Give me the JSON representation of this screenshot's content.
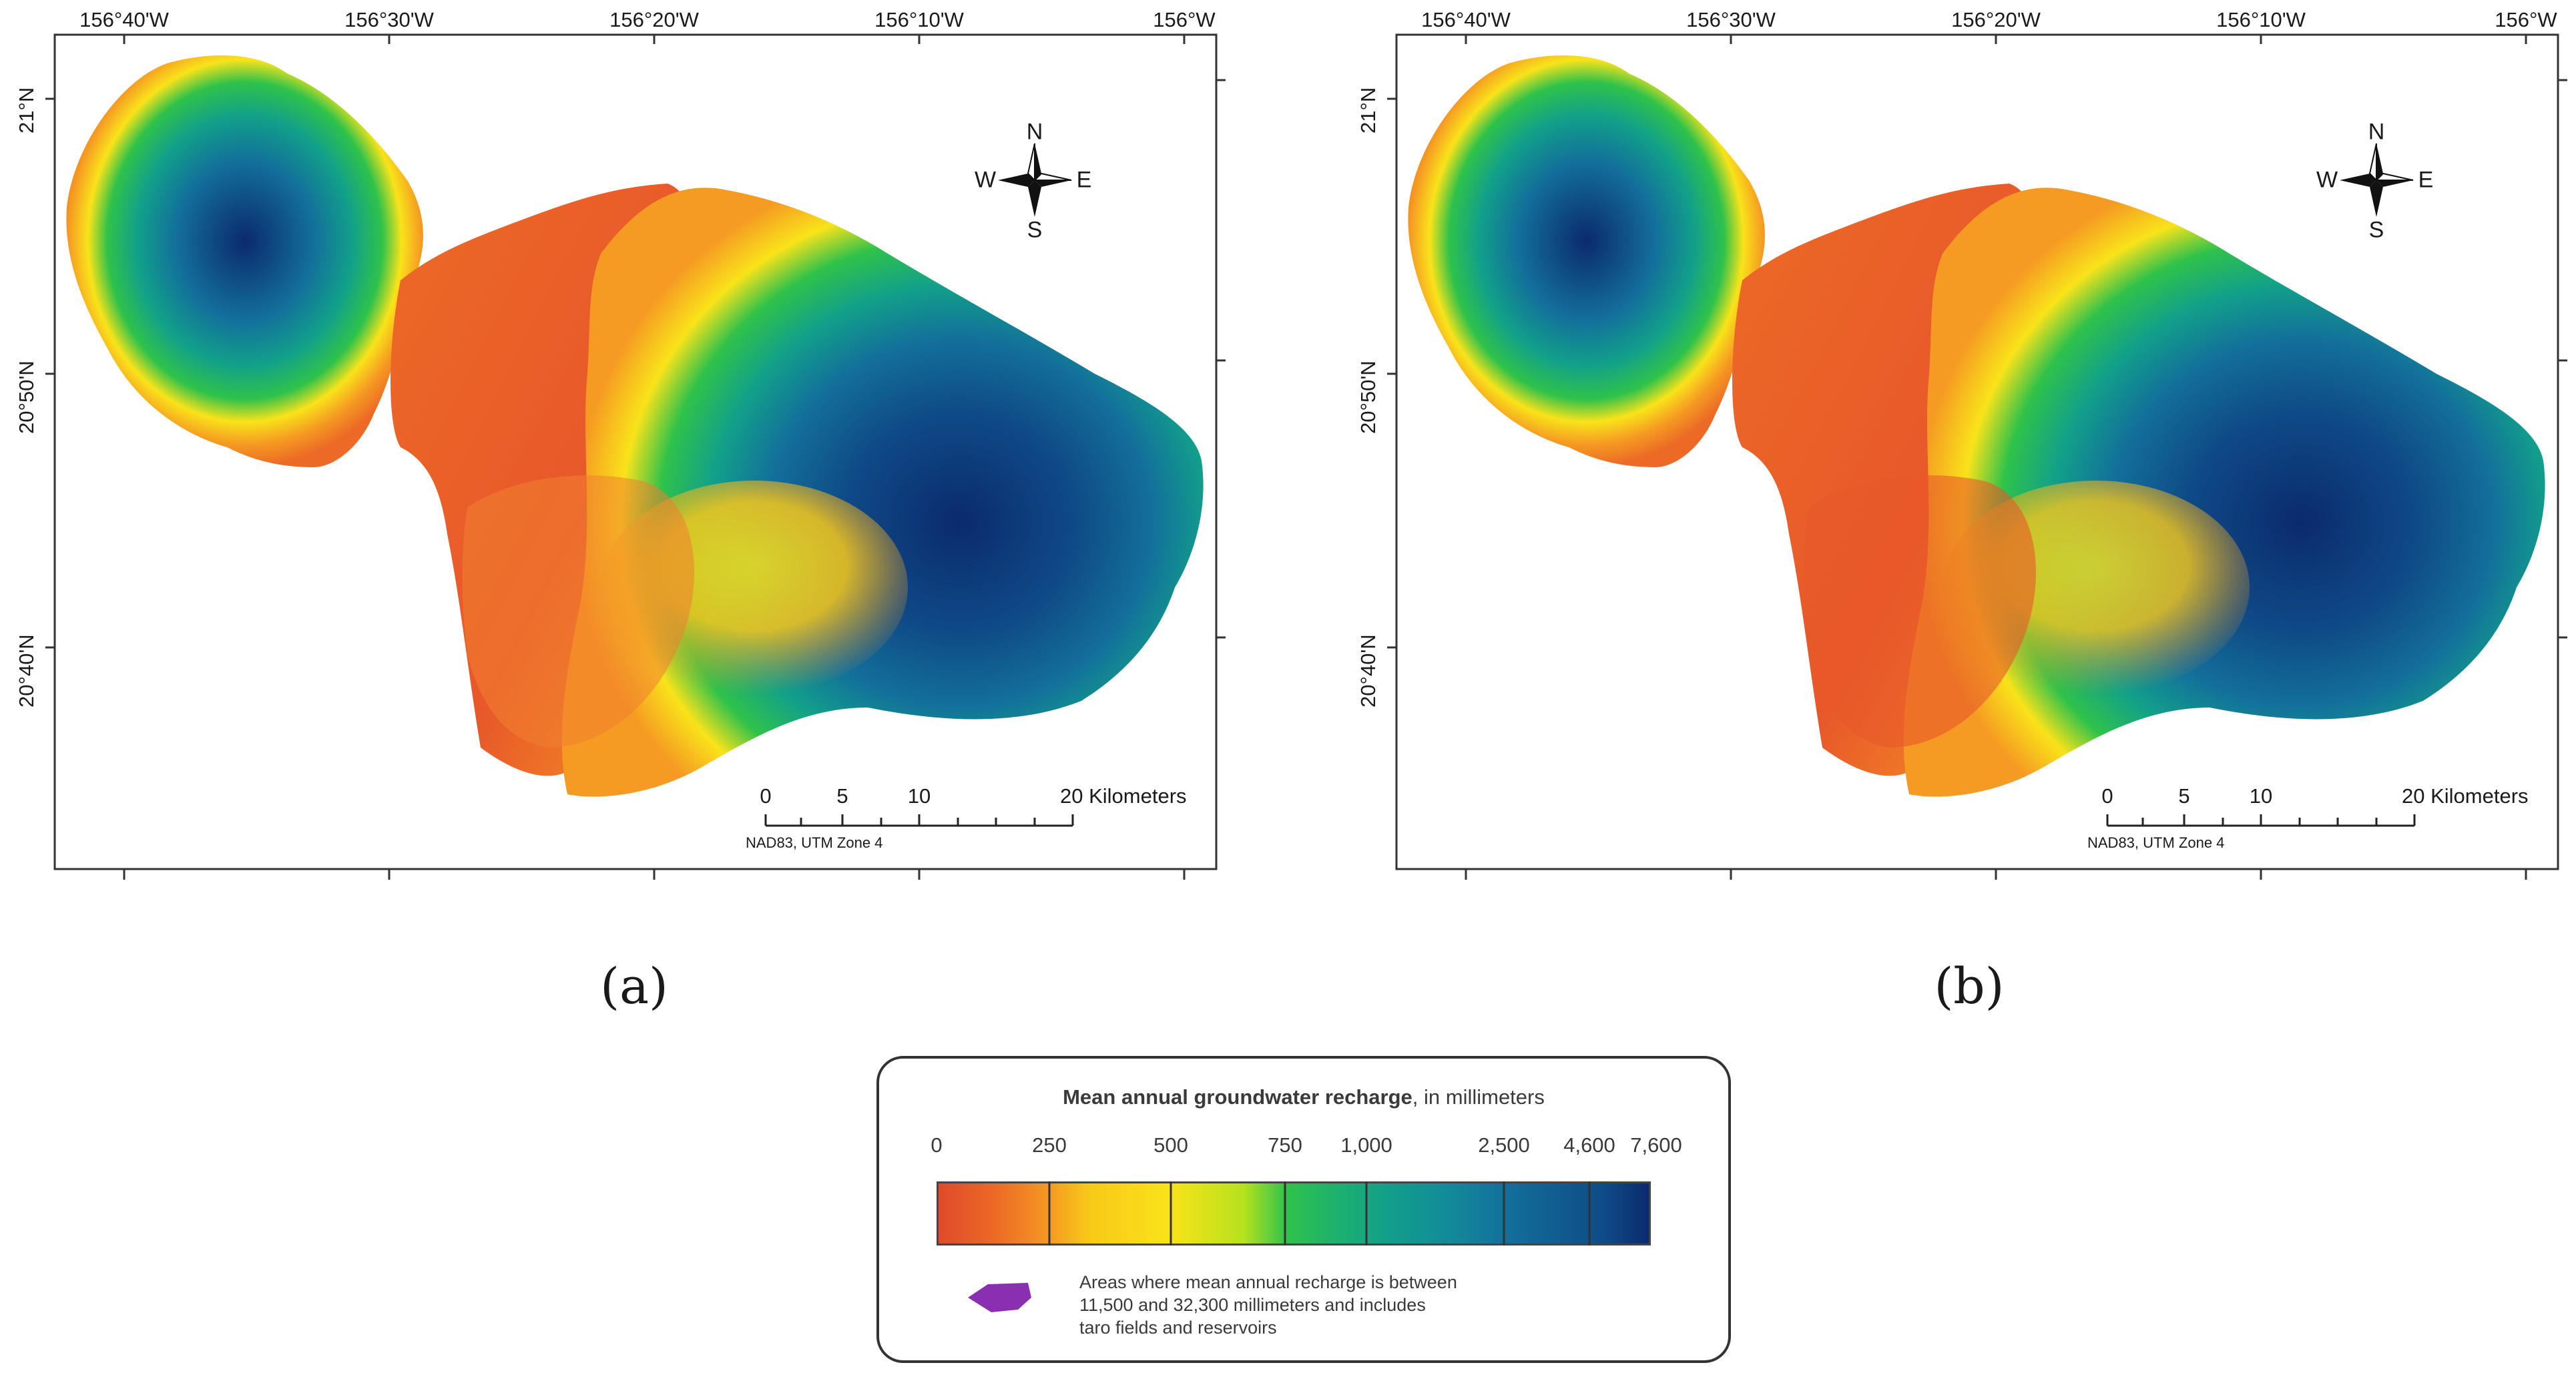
{
  "maps": [
    {
      "id": "a",
      "caption": "(a)",
      "lon_labels": [
        "156°40'W",
        "156°30'W",
        "156°20'W",
        "156°10'W",
        "156°W"
      ],
      "lat_labels": [
        "21°N",
        "20°50'N",
        "20°40'N"
      ],
      "compass": {
        "n": "N",
        "s": "S",
        "e": "E",
        "w": "W"
      },
      "scale_bar": {
        "ticks": [
          "0",
          "5",
          "10",
          "20 Kilometers"
        ],
        "projection": "NAD83, UTM Zone 4"
      }
    },
    {
      "id": "b",
      "caption": "(b)",
      "lon_labels": [
        "156°40'W",
        "156°30'W",
        "156°20'W",
        "156°10'W",
        "156°W"
      ],
      "lat_labels": [
        "21°N",
        "20°50'N",
        "20°40'N"
      ],
      "compass": {
        "n": "N",
        "s": "S",
        "e": "E",
        "w": "W"
      },
      "scale_bar": {
        "ticks": [
          "0",
          "5",
          "10",
          "20 Kilometers"
        ],
        "projection": "NAD83, UTM Zone 4"
      }
    }
  ],
  "legend": {
    "title_bold": "Mean annual groundwater recharge",
    "title_rest": ", in millimeters",
    "ticks": [
      "0",
      "250",
      "500",
      "750",
      "1,000",
      "2,500",
      "4,600",
      "7,600"
    ],
    "swatch_text": [
      "Areas where mean annual recharge is between",
      "11,500 and 32,300 millimeters and includes",
      "taro fields and reservoirs"
    ],
    "swatch_color": "#8a2fb0",
    "ramp_colors": [
      "#e04a2c",
      "#f59a22",
      "#f9e31a",
      "#2fc24a",
      "#12a08a",
      "#136f9b",
      "#0b2a6e"
    ]
  }
}
